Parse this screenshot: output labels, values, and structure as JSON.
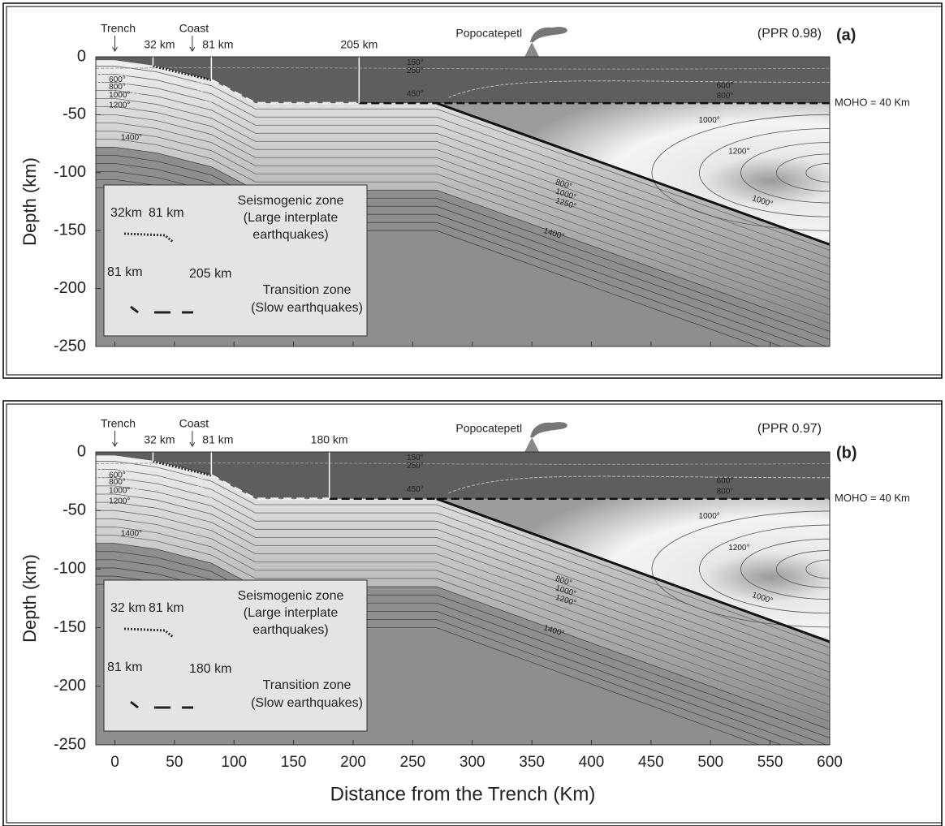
{
  "chart_data": [
    {
      "type": "contour",
      "panel_label": "(a)",
      "fit": "(PPR 0.98)",
      "ylabel": "Depth (km)",
      "xlim": [
        -16,
        600
      ],
      "ylim": [
        -250,
        0
      ],
      "xticks": [
        0,
        50,
        100,
        150,
        200,
        250,
        300,
        350,
        400,
        450,
        500,
        550,
        600
      ],
      "xtick_labels": false,
      "yticks": [
        0,
        -50,
        -100,
        -150,
        -200,
        -250
      ],
      "sites": {
        "labels": [
          "Trench",
          "Coast"
        ],
        "x": [
          0,
          65
        ]
      },
      "km_markers": {
        "values": [
          32,
          81,
          205
        ],
        "value_labels": [
          "32 km",
          "81 km",
          "205 km"
        ]
      },
      "volcano": "Popocatepetl",
      "moho": {
        "value": -40,
        "label": "MOHO = 40 Km"
      },
      "isotherms": [
        "150°",
        "250°",
        "450°",
        "600°",
        "800°",
        "1000°",
        "1200°",
        "1400°",
        "600°",
        "800°",
        "1000°",
        "1200°",
        "1000°",
        "800°",
        "1000°",
        "1250°",
        "1400°"
      ],
      "legend": [
        {
          "range": [
            "32km",
            "81 km"
          ],
          "lines": [
            "Seismogenic zone",
            "(Large interplate",
            "earthquakes)"
          ]
        },
        {
          "range": [
            "81 km",
            "205 km"
          ],
          "lines": [
            "Transition zone",
            "(Slow earthquakes)"
          ]
        }
      ]
    },
    {
      "type": "contour",
      "panel_label": "(b)",
      "fit": "(PPR 0.97)",
      "ylabel": "Depth (km)",
      "xlabel": "Distance from the Trench (Km)",
      "xlim": [
        -16,
        600
      ],
      "ylim": [
        -250,
        0
      ],
      "xticks": [
        0,
        50,
        100,
        150,
        200,
        250,
        300,
        350,
        400,
        450,
        500,
        550,
        600
      ],
      "xtick_labels": true,
      "yticks": [
        0,
        -50,
        -100,
        -150,
        -200,
        -250
      ],
      "sites": {
        "labels": [
          "Trench",
          "Coast"
        ],
        "x": [
          0,
          65
        ]
      },
      "km_markers": {
        "values": [
          32,
          81,
          180
        ],
        "value_labels": [
          "32 km",
          "81 km",
          "180 km"
        ]
      },
      "volcano": "Popocatepetl",
      "moho": {
        "value": -40,
        "label": "MOHO = 40 Km"
      },
      "isotherms": [
        "150°",
        "250°",
        "450°",
        "600°",
        "800°",
        "1000°",
        "1200°",
        "1400°",
        "600°",
        "800°",
        "1000°",
        "1200°",
        "1000°",
        "800°",
        "1000°",
        "1200°",
        "1400°"
      ],
      "legend": [
        {
          "range": [
            "32 km",
            "81 km"
          ],
          "lines": [
            "Seismogenic zone",
            "(Large interplate",
            "earthquakes)"
          ]
        },
        {
          "range": [
            "81 km",
            "180 km"
          ],
          "lines": [
            "Transition zone",
            "(Slow earthquakes)"
          ]
        }
      ]
    }
  ]
}
